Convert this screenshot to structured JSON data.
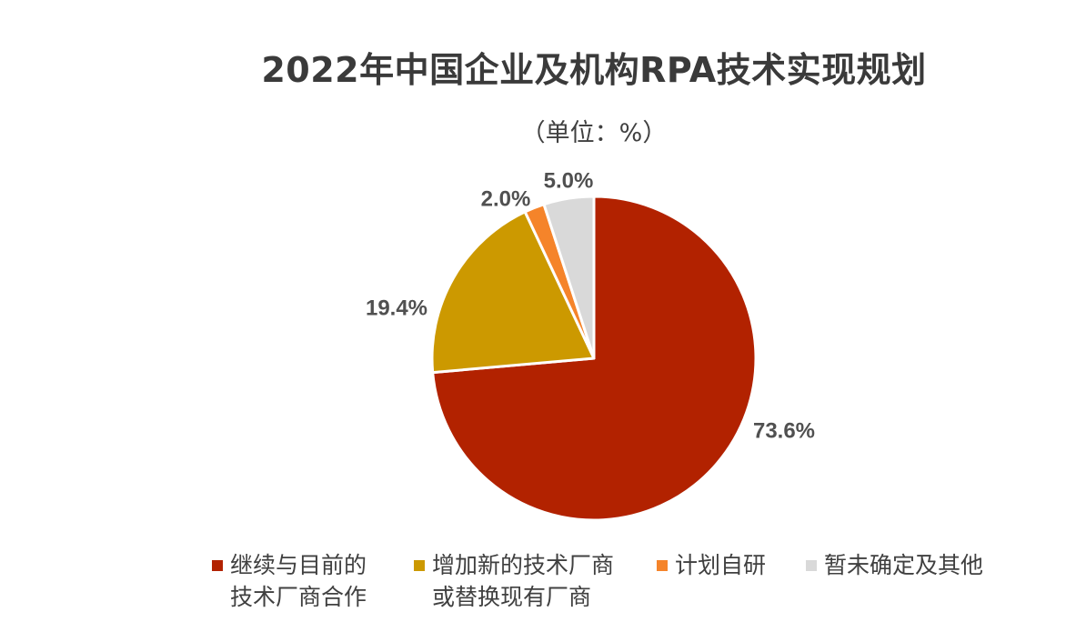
{
  "chart_data": {
    "type": "pie",
    "title": "2022年中国企业及机构RPA技术实现规划",
    "subtitle": "（单位：%）",
    "categories": [
      "继续与目前的\n技术厂商合作",
      "增加新的技术厂商\n或替换现有厂商",
      "计划自研",
      "暂未确定及其他"
    ],
    "values": [
      73.6,
      19.4,
      2.0,
      5.0
    ],
    "data_labels": [
      "73.6%",
      "19.4%",
      "2.0%",
      "5.0%"
    ],
    "colors": [
      "#B22200",
      "#CC9900",
      "#F5842A",
      "#D9D9D9"
    ],
    "start_angle": "12 o'clock",
    "direction": "clockwise",
    "legend_position": "bottom"
  }
}
